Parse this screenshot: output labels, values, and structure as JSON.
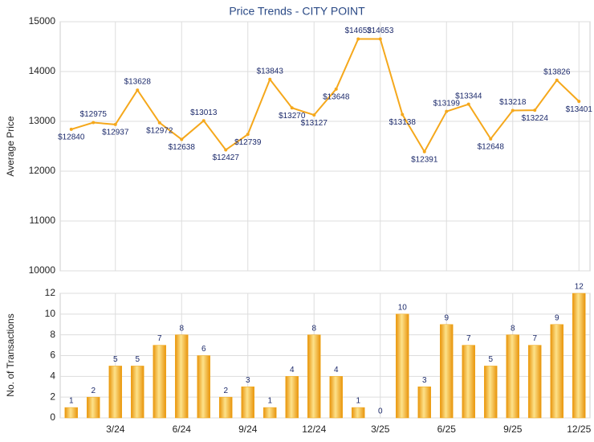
{
  "chart_data": [
    {
      "type": "line",
      "title": "Price Trends - CITY POINT",
      "ylabel": "Average Price",
      "color": "#f5a81c",
      "values": [
        12840,
        12975,
        12937,
        13628,
        12972,
        12638,
        13013,
        12427,
        12739,
        13843,
        13270,
        13127,
        13648,
        14653,
        14653,
        13138,
        12391,
        13199,
        13344,
        12648,
        13218,
        13224,
        13826,
        13401
      ],
      "value_labels": [
        "$12840",
        "$12975",
        "$12937",
        "$13628",
        "$12972",
        "$12638",
        "$13013",
        "$12427",
        "$12739",
        "$13843",
        "$13270",
        "$13127",
        "$13648",
        "$14653",
        "$14653",
        "$13138",
        "$12391",
        "$13199",
        "$13344",
        "$12648",
        "$13218",
        "$13224",
        "$13826",
        "$13401"
      ],
      "ylim": [
        10000,
        15000
      ],
      "yticks": [
        10000,
        11000,
        12000,
        13000,
        14000,
        15000
      ],
      "grid": true
    },
    {
      "type": "bar",
      "ylabel": "No. of Transactions",
      "color": "#f2a816",
      "categories": [
        null,
        null,
        "3/24",
        null,
        null,
        "6/24",
        null,
        null,
        "9/24",
        null,
        null,
        "12/24",
        null,
        null,
        "3/25",
        null,
        null,
        "6/25",
        null,
        null,
        "9/25",
        null,
        null,
        "12/25"
      ],
      "values": [
        1,
        2,
        5,
        5,
        7,
        8,
        6,
        2,
        3,
        1,
        4,
        8,
        4,
        1,
        0,
        10,
        3,
        9,
        7,
        5,
        8,
        7,
        9,
        12
      ],
      "ylim": [
        0,
        12
      ],
      "yticks": [
        0,
        2,
        4,
        6,
        8,
        10,
        12
      ],
      "grid": true
    }
  ]
}
